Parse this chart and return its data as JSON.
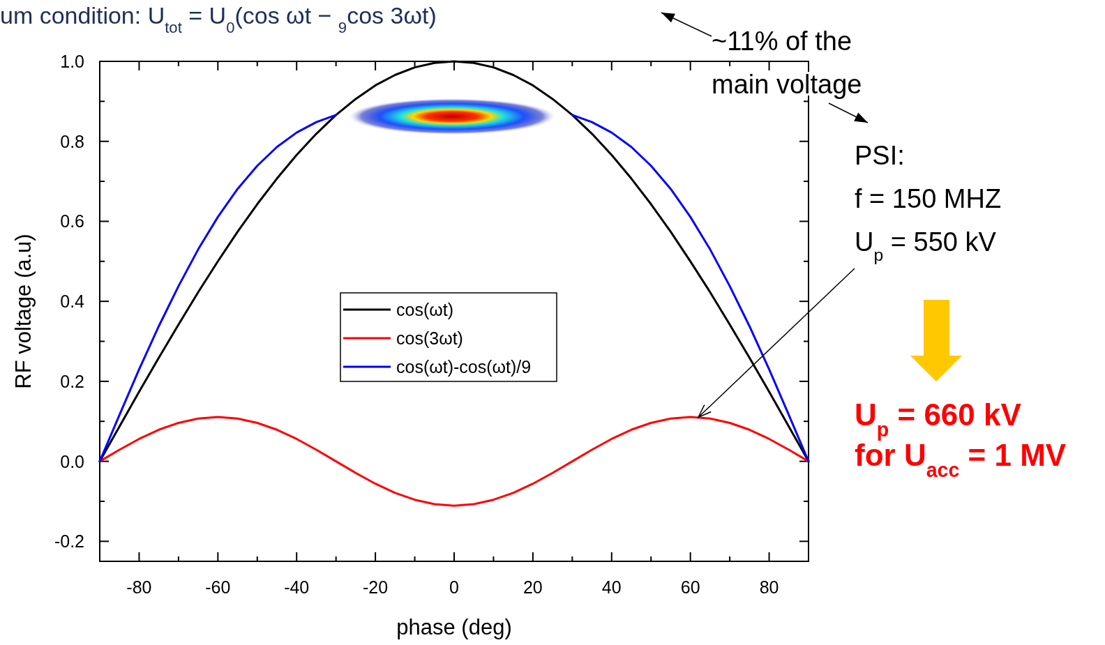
{
  "chart_data": {
    "type": "line",
    "title": "um condition: U$_{tot}$ = U$_{0}$(cos ωt − $_{9}$cos 3ωt)",
    "xlabel": "phase (deg)",
    "ylabel": "RF voltage (a.u)",
    "annotations": [
      "~11% of the\nmain voltage",
      {
        "text": "PSI:\nf = 150 MHZ\nU$_{p}$ = 550 kV",
        "x": 62,
        "y": 0.11
      },
      "U$_{p}$ = 660 kV\nfor U$_{acc}$ = 1 MV"
    ],
    "x": [
      -90,
      -85,
      -80,
      -75,
      -70,
      -65,
      -60,
      -55,
      -50,
      -45,
      -40,
      -35,
      -30,
      -25,
      -20,
      -15,
      -10,
      -5,
      0,
      5,
      10,
      15,
      20,
      25,
      30,
      35,
      40,
      45,
      50,
      55,
      60,
      65,
      70,
      75,
      80,
      85,
      90
    ],
    "series": [
      {
        "name": "cos(ωt)",
        "color": "#000000",
        "values": [
          0,
          0.087,
          0.174,
          0.259,
          0.342,
          0.423,
          0.5,
          0.574,
          0.643,
          0.707,
          0.766,
          0.819,
          0.866,
          0.906,
          0.94,
          0.966,
          0.985,
          0.996,
          1,
          0.996,
          0.985,
          0.966,
          0.94,
          0.906,
          0.866,
          0.819,
          0.766,
          0.707,
          0.643,
          0.574,
          0.5,
          0.423,
          0.342,
          0.259,
          0.174,
          0.087,
          0
        ]
      },
      {
        "name": "cos(3ωt)",
        "color": "#ff0000",
        "values": [
          0,
          0.029,
          0.056,
          0.079,
          0.096,
          0.107,
          0.111,
          0.107,
          0.096,
          0.079,
          0.056,
          0.029,
          0,
          -0.029,
          -0.056,
          -0.079,
          -0.096,
          -0.107,
          -0.111,
          -0.107,
          -0.096,
          -0.079,
          -0.056,
          -0.029,
          0,
          0.029,
          0.056,
          0.079,
          0.096,
          0.107,
          0.111,
          0.107,
          0.096,
          0.079,
          0.056,
          0.029,
          0
        ]
      },
      {
        "name": "cos(ωt)-cos(ωt)/9",
        "color": "#0000ff",
        "values": [
          0,
          0.116,
          0.23,
          0.338,
          0.438,
          0.53,
          0.611,
          0.681,
          0.739,
          0.786,
          0.822,
          0.848,
          0.866,
          null,
          null,
          null,
          null,
          null,
          null,
          null,
          null,
          null,
          null,
          null,
          0.866,
          0.848,
          0.822,
          0.786,
          0.739,
          0.681,
          0.611,
          0.53,
          0.438,
          0.338,
          0.23,
          0.116,
          0
        ]
      }
    ],
    "xlim": [
      -90,
      90
    ],
    "xticks": [
      -80,
      {
        "value": -70,
        "label": null
      },
      -60,
      {
        "value": -50,
        "label": null
      },
      -40,
      {
        "value": -30,
        "label": null
      },
      -20,
      {
        "value": -10,
        "label": null
      },
      0,
      {
        "value": 10,
        "label": null
      },
      20,
      {
        "value": 30,
        "label": null
      },
      40,
      {
        "value": 50,
        "label": null
      },
      60,
      {
        "value": 70,
        "label": null
      },
      80
    ],
    "ylim": [
      -0.25,
      1.0
    ],
    "yticks": [
      {
        "value": -0.2,
        "label": "-0.2"
      },
      {
        "value": -0.1,
        "label": null
      },
      {
        "value": 0,
        "label": "0.0"
      },
      {
        "value": 0.1,
        "label": null
      },
      {
        "value": 0.2,
        "label": "0.2"
      },
      {
        "value": 0.3,
        "label": null
      },
      {
        "value": 0.4,
        "label": "0.4"
      },
      {
        "value": 0.5,
        "label": null
      },
      {
        "value": 0.6,
        "label": "0.6"
      },
      {
        "value": 0.7,
        "label": null
      },
      {
        "value": 0.8,
        "label": "0.8"
      },
      {
        "value": 0.9,
        "label": null
      },
      {
        "value": 1.0,
        "label": "1.0"
      }
    ],
    "legend": "center"
  }
}
